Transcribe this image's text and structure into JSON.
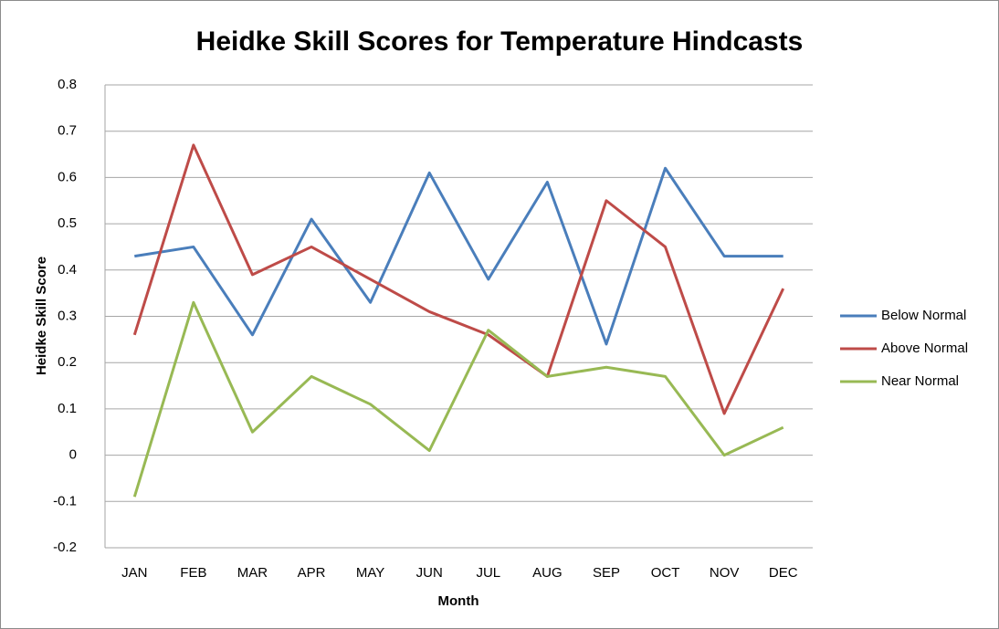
{
  "chart_data": {
    "type": "line",
    "title": "Heidke Skill Scores for Temperature Hindcasts",
    "xlabel": "Month",
    "ylabel": "Heidke Skill Score",
    "categories": [
      "JAN",
      "FEB",
      "MAR",
      "APR",
      "MAY",
      "JUN",
      "JUL",
      "AUG",
      "SEP",
      "OCT",
      "NOV",
      "DEC"
    ],
    "series": [
      {
        "name": "Below Normal",
        "color": "#4a7ebb",
        "values": [
          0.43,
          0.45,
          0.26,
          0.51,
          0.33,
          0.61,
          0.38,
          0.59,
          0.24,
          0.62,
          0.43,
          0.43
        ]
      },
      {
        "name": "Above Normal",
        "color": "#be4b48",
        "values": [
          0.26,
          0.67,
          0.39,
          0.45,
          0.38,
          0.31,
          0.26,
          0.17,
          0.55,
          0.45,
          0.09,
          0.36
        ]
      },
      {
        "name": "Near Normal",
        "color": "#98b954",
        "values": [
          -0.09,
          0.33,
          0.05,
          0.17,
          0.11,
          0.01,
          0.27,
          0.17,
          0.19,
          0.17,
          0,
          0.06
        ]
      }
    ],
    "ylim": [
      -0.2,
      0.8
    ],
    "yticks": [
      0.8,
      0.7,
      0.6,
      0.5,
      0.4,
      0.3,
      0.2,
      0.1,
      0,
      -0.1,
      -0.2
    ],
    "grid": true,
    "legend": "right"
  }
}
